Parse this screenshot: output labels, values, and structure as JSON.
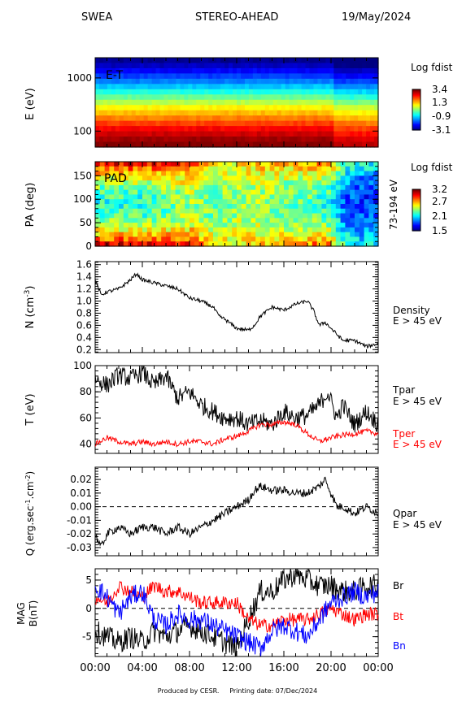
{
  "header": {
    "instrument": "SWEA",
    "spacecraft": "STEREO-AHEAD",
    "date": "19/May/2024"
  },
  "footer": {
    "produced": "Produced by CESR.",
    "printing": "Printing date: 07/Dec/2024"
  },
  "x_ticks": [
    "00:00",
    "04:00",
    "08:00",
    "12:00",
    "16:00",
    "20:00",
    "00:00"
  ],
  "colors": {
    "black": "#000000",
    "red": "#ff0000",
    "blue": "#0000ff"
  },
  "chart_data": [
    {
      "type": "heatmap",
      "label": "E-T",
      "ylabel": "E (eV)",
      "yscale": "log",
      "ylim": [
        50,
        2400
      ],
      "yticks": [
        "1000",
        "100"
      ],
      "colorbar_title": "Log fdist",
      "colorbar_ticks": [
        "3.4",
        "1.3",
        "-0.9",
        "-3.1"
      ],
      "colorbar_range": [
        -3.1,
        3.4
      ],
      "energy_levels_eV": [
        2200,
        1750,
        1400,
        1100,
        880,
        700,
        560,
        450,
        360,
        290,
        230,
        185,
        150,
        120,
        96,
        77,
        62
      ],
      "levels_at_start": [
        -3.0,
        -2.7,
        -2.3,
        -1.9,
        -1.5,
        -1.0,
        -0.5,
        0.0,
        0.5,
        1.0,
        1.4,
        1.8,
        2.2,
        2.6,
        2.9,
        3.2,
        3.4
      ],
      "late_offset_after_20h": -0.4
    },
    {
      "type": "heatmap",
      "label": "PAD",
      "ylabel": "PA (deg)",
      "ylim": [
        0,
        180
      ],
      "yticks": [
        "0",
        "50",
        "100",
        "150"
      ],
      "right_label": "73-194 eV",
      "colorbar_title": "Log fdist",
      "colorbar_ticks": [
        "3.2",
        "2.7",
        "2.1",
        "1.5"
      ],
      "colorbar_range": [
        1.5,
        3.2
      ],
      "time_hours": [
        0,
        2,
        4,
        6,
        8,
        10,
        12,
        14,
        16,
        18,
        19.5,
        21,
        22,
        24
      ],
      "field_aligned_level": [
        3.1,
        3.1,
        3.1,
        3.0,
        3.0,
        2.6,
        2.6,
        2.7,
        2.7,
        2.8,
        2.9,
        2.3,
        2.2,
        2.2
      ],
      "perpendicular_level": [
        2.2,
        2.2,
        2.2,
        2.3,
        2.4,
        2.3,
        2.4,
        2.4,
        2.3,
        2.3,
        2.2,
        1.9,
        1.8,
        1.8
      ]
    },
    {
      "type": "line",
      "ylabel": "N (cm",
      "ylabel_sup": "-3",
      "ylabel_end": ")",
      "ylim": [
        0.15,
        1.65
      ],
      "yticks": [
        "0.2",
        "0.4",
        "0.6",
        "0.8",
        "1.0",
        "1.2",
        "1.4",
        "1.6"
      ],
      "series": [
        {
          "name": "Density",
          "subtitle": "E > 45 eV",
          "color": "#000000",
          "x": [
            0,
            0.5,
            1,
            2,
            3,
            3.5,
            4,
            5,
            6,
            7,
            8,
            9,
            10,
            10.5,
            11,
            12,
            13,
            13.5,
            14,
            15,
            16,
            17,
            18,
            18.5,
            19,
            19.5,
            20,
            20.5,
            21,
            22,
            23,
            24
          ],
          "y": [
            1.35,
            1.1,
            1.15,
            1.2,
            1.35,
            1.45,
            1.35,
            1.3,
            1.25,
            1.2,
            1.05,
            1.0,
            0.9,
            0.75,
            0.7,
            0.55,
            0.52,
            0.6,
            0.75,
            0.9,
            0.85,
            0.95,
            1.0,
            0.85,
            0.6,
            0.65,
            0.55,
            0.45,
            0.35,
            0.35,
            0.25,
            0.3
          ]
        }
      ]
    },
    {
      "type": "line",
      "ylabel": "T (eV)",
      "ylim": [
        33,
        100
      ],
      "yticks": [
        "40",
        "60",
        "80",
        "100"
      ],
      "series": [
        {
          "name": "Tpar",
          "subtitle": "E > 45 eV",
          "color": "#000000",
          "x": [
            0,
            1,
            2,
            3,
            4,
            5,
            6,
            7,
            8,
            9,
            10,
            11,
            12,
            13,
            14,
            15,
            16,
            17,
            18,
            19,
            19.7,
            20.5,
            21,
            22,
            23,
            24
          ],
          "y": [
            90,
            85,
            93,
            90,
            95,
            85,
            92,
            75,
            80,
            70,
            65,
            60,
            60,
            55,
            58,
            55,
            65,
            60,
            62,
            70,
            80,
            60,
            70,
            55,
            65,
            55
          ]
        },
        {
          "name": "Tper",
          "subtitle": "E > 45 eV",
          "color": "#ff0000",
          "x": [
            0,
            1,
            2,
            3,
            4,
            5,
            6,
            7,
            8,
            9,
            10,
            11,
            12,
            13,
            14,
            15,
            16,
            17,
            18,
            19,
            20,
            21,
            22,
            23,
            24
          ],
          "y": [
            40,
            45,
            42,
            40,
            42,
            40,
            42,
            40,
            42,
            42,
            40,
            44,
            46,
            50,
            55,
            55,
            57,
            55,
            48,
            42,
            45,
            47,
            48,
            50,
            48
          ]
        }
      ]
    },
    {
      "type": "line",
      "ylabel": "Q (erg.sec",
      "ylabel_sup": "-1",
      "ylabel_mid": ".cm",
      "ylabel_sup2": "-2",
      "ylabel_end": ")",
      "ylim": [
        -0.036,
        0.029
      ],
      "yticks": [
        "-0.03",
        "-0.02",
        "-0.01",
        "0.00",
        "0.01",
        "0.02"
      ],
      "zero_line": true,
      "series": [
        {
          "name": "Qpar",
          "subtitle": "E > 45 eV",
          "color": "#000000",
          "x": [
            0,
            0.5,
            1,
            2,
            3,
            4,
            5,
            6,
            7,
            8,
            9,
            10,
            11,
            12,
            13,
            13.5,
            14,
            15,
            16,
            17,
            18,
            19,
            19.5,
            20,
            20.5,
            21,
            22,
            23,
            24
          ],
          "y": [
            -0.02,
            -0.03,
            -0.02,
            -0.015,
            -0.02,
            -0.015,
            -0.015,
            -0.02,
            -0.015,
            -0.02,
            -0.015,
            -0.01,
            -0.005,
            0.0,
            0.005,
            0.012,
            0.015,
            0.012,
            0.012,
            0.01,
            0.01,
            0.015,
            0.02,
            0.01,
            0.0,
            0.0,
            -0.005,
            0.0,
            -0.005
          ]
        }
      ]
    },
    {
      "type": "line",
      "ylabel": "MAG",
      "ylabel2": "B(nT)",
      "ylim": [
        -8.5,
        7
      ],
      "yticks": [
        "-5",
        "0",
        "5"
      ],
      "zero_line": true,
      "series": [
        {
          "name": "Br",
          "color": "#000000",
          "x": [
            0,
            1,
            2,
            3,
            4,
            5,
            6,
            7,
            8,
            9,
            10,
            11,
            12,
            13,
            14,
            15,
            16,
            17,
            18,
            19,
            20,
            21,
            22,
            23,
            24
          ],
          "y": [
            -4,
            -5,
            -6,
            -5,
            -6,
            -4,
            -5,
            -4,
            -3,
            -4,
            -5,
            -6,
            -7,
            -2,
            3,
            3,
            5,
            6,
            5,
            4,
            4,
            3,
            3,
            4,
            4
          ]
        },
        {
          "name": "Bt",
          "color": "#ff0000",
          "x": [
            0,
            1,
            2,
            3,
            4,
            5,
            6,
            7,
            8,
            9,
            10,
            11,
            12,
            13,
            14,
            15,
            16,
            17,
            18,
            19,
            20,
            21,
            22,
            23,
            24
          ],
          "y": [
            2,
            1,
            4,
            3,
            2,
            4,
            3,
            3,
            2,
            1,
            1,
            1,
            1,
            -2,
            -3,
            -3,
            -2,
            -2,
            -2,
            -1,
            0,
            -1,
            -2,
            -1,
            -1
          ]
        },
        {
          "name": "Bn",
          "color": "#0000ff",
          "x": [
            0,
            1,
            2,
            3,
            4,
            5,
            6,
            7,
            8,
            9,
            10,
            11,
            12,
            13,
            14,
            15,
            16,
            17,
            18,
            19,
            20,
            21,
            22,
            23,
            24
          ],
          "y": [
            4,
            2,
            -1,
            2,
            3,
            -2,
            -3,
            -1,
            -2,
            -2,
            -3,
            -4,
            -5,
            -6,
            -7,
            -4,
            -3,
            -4,
            -5,
            -2,
            1,
            2,
            3,
            2,
            3
          ]
        }
      ]
    }
  ]
}
